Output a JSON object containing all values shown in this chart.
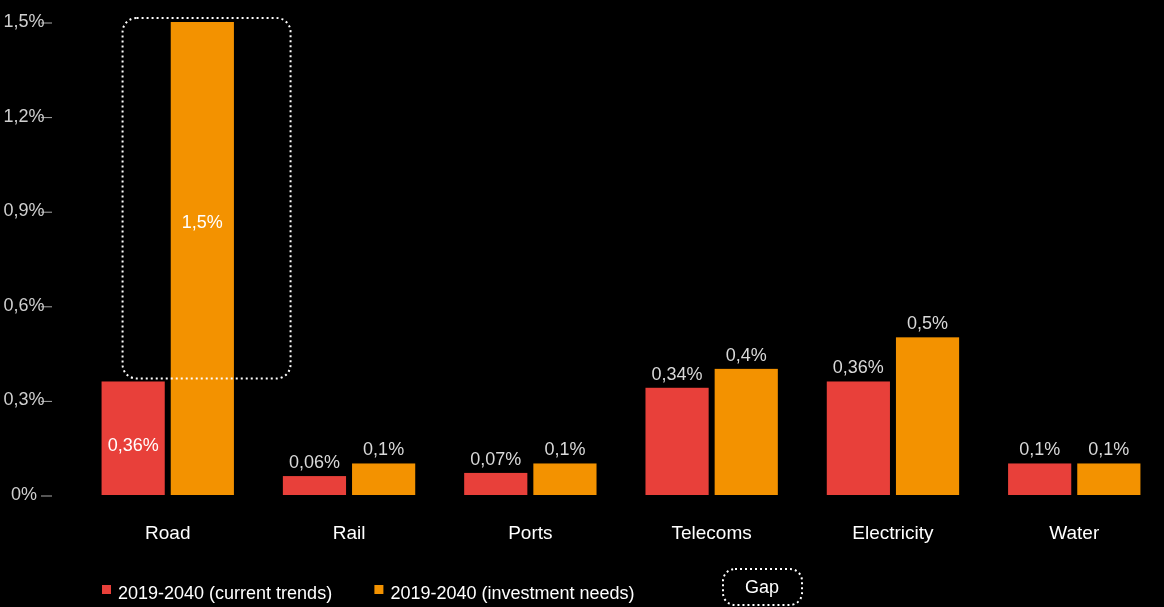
{
  "chart_data": {
    "type": "bar",
    "categories": [
      "Road",
      "Rail",
      "Ports",
      "Telecoms",
      "Electricity",
      "Water"
    ],
    "series": [
      {
        "name": "2019-2040 (current trends)",
        "color": "#e8403a",
        "values": [
          0.36,
          0.06,
          0.07,
          0.34,
          0.36,
          0.1
        ],
        "value_labels": [
          "0,36%",
          "0,06%",
          "0,07%",
          "0,34%",
          "0,36%",
          "0,1%"
        ]
      },
      {
        "name": "2019-2040 (investment needs)",
        "color": "#f39200",
        "values": [
          1.5,
          0.1,
          0.1,
          0.4,
          0.5,
          0.1
        ],
        "value_labels": [
          "1,5%",
          "0,1%",
          "0,1%",
          "0,4%",
          "0,5%",
          "0,1%"
        ]
      }
    ],
    "ylim": [
      0,
      1.5
    ],
    "yticks": [
      {
        "value": 0,
        "label": "0%"
      },
      {
        "value": 0.3,
        "label": "0,3%"
      },
      {
        "value": 0.6,
        "label": "0,6%"
      },
      {
        "value": 0.9,
        "label": "0,9%"
      },
      {
        "value": 1.2,
        "label": "1,2%"
      },
      {
        "value": 1.5,
        "label": "1,5%"
      }
    ],
    "legend": "bottom",
    "grid": false,
    "annotations": [
      "Gap"
    ]
  }
}
